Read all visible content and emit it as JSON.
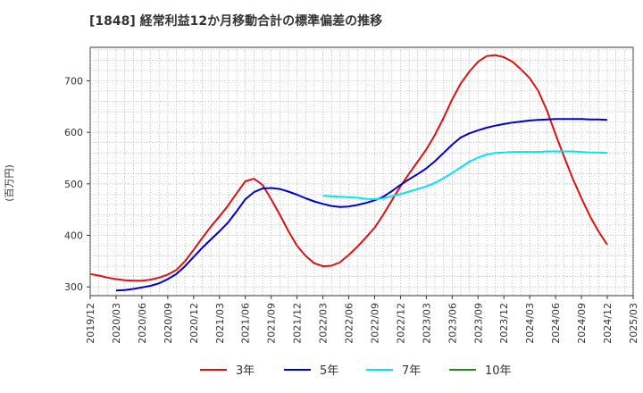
{
  "chart_data": {
    "type": "line",
    "title": "[1848]  経常利益12か月移動合計の標準偏差の推移",
    "xlabel": "",
    "ylabel": "(百万円)",
    "ylim": [
      283,
      765
    ],
    "yticks": [
      300,
      400,
      500,
      600,
      700
    ],
    "x_start": "2019-12",
    "x_end": "2025-03",
    "xticks": [
      "2019/12",
      "2020/03",
      "2020/06",
      "2020/09",
      "2020/12",
      "2021/03",
      "2021/06",
      "2021/09",
      "2021/12",
      "2022/03",
      "2022/06",
      "2022/09",
      "2022/12",
      "2023/03",
      "2023/06",
      "2023/09",
      "2023/12",
      "2024/03",
      "2024/06",
      "2024/09",
      "2024/12",
      "2025/03"
    ],
    "grid": true,
    "legend_position": "bottom",
    "series": [
      {
        "name": "3年",
        "color": "#dd1111",
        "points": [
          [
            "2019-12",
            325
          ],
          [
            "2020-01",
            322
          ],
          [
            "2020-02",
            318
          ],
          [
            "2020-03",
            315
          ],
          [
            "2020-04",
            313
          ],
          [
            "2020-05",
            312
          ],
          [
            "2020-06",
            312
          ],
          [
            "2020-07",
            314
          ],
          [
            "2020-08",
            318
          ],
          [
            "2020-09",
            324
          ],
          [
            "2020-10",
            333
          ],
          [
            "2020-11",
            350
          ],
          [
            "2020-12",
            372
          ],
          [
            "2021-01",
            395
          ],
          [
            "2021-02",
            417
          ],
          [
            "2021-03",
            437
          ],
          [
            "2021-04",
            458
          ],
          [
            "2021-05",
            482
          ],
          [
            "2021-06",
            505
          ],
          [
            "2021-07",
            510
          ],
          [
            "2021-08",
            498
          ],
          [
            "2021-09",
            470
          ],
          [
            "2021-10",
            440
          ],
          [
            "2021-11",
            408
          ],
          [
            "2021-12",
            380
          ],
          [
            "2022-01",
            360
          ],
          [
            "2022-02",
            346
          ],
          [
            "2022-03",
            340
          ],
          [
            "2022-04",
            341
          ],
          [
            "2022-05",
            348
          ],
          [
            "2022-06",
            362
          ],
          [
            "2022-07",
            378
          ],
          [
            "2022-08",
            396
          ],
          [
            "2022-09",
            415
          ],
          [
            "2022-10",
            440
          ],
          [
            "2022-11",
            468
          ],
          [
            "2022-12",
            495
          ],
          [
            "2023-01",
            520
          ],
          [
            "2023-02",
            543
          ],
          [
            "2023-03",
            567
          ],
          [
            "2023-04",
            595
          ],
          [
            "2023-05",
            628
          ],
          [
            "2023-06",
            664
          ],
          [
            "2023-07",
            695
          ],
          [
            "2023-08",
            718
          ],
          [
            "2023-09",
            737
          ],
          [
            "2023-10",
            748
          ],
          [
            "2023-11",
            750
          ],
          [
            "2023-12",
            746
          ],
          [
            "2024-01",
            737
          ],
          [
            "2024-02",
            722
          ],
          [
            "2024-03",
            705
          ],
          [
            "2024-04",
            680
          ],
          [
            "2024-05",
            642
          ],
          [
            "2024-06",
            596
          ],
          [
            "2024-07",
            552
          ],
          [
            "2024-08",
            510
          ],
          [
            "2024-09",
            472
          ],
          [
            "2024-10",
            437
          ],
          [
            "2024-11",
            407
          ],
          [
            "2024-12",
            382
          ]
        ]
      },
      {
        "name": "5年",
        "color": "#0000cc",
        "points": [
          [
            "2020-03",
            293
          ],
          [
            "2020-04",
            294
          ],
          [
            "2020-05",
            296
          ],
          [
            "2020-06",
            299
          ],
          [
            "2020-07",
            302
          ],
          [
            "2020-08",
            307
          ],
          [
            "2020-09",
            315
          ],
          [
            "2020-10",
            325
          ],
          [
            "2020-11",
            340
          ],
          [
            "2020-12",
            358
          ],
          [
            "2021-01",
            376
          ],
          [
            "2021-02",
            392
          ],
          [
            "2021-03",
            408
          ],
          [
            "2021-04",
            425
          ],
          [
            "2021-05",
            447
          ],
          [
            "2021-06",
            470
          ],
          [
            "2021-07",
            484
          ],
          [
            "2021-08",
            491
          ],
          [
            "2021-09",
            492
          ],
          [
            "2021-10",
            490
          ],
          [
            "2021-11",
            485
          ],
          [
            "2021-12",
            479
          ],
          [
            "2022-01",
            472
          ],
          [
            "2022-02",
            466
          ],
          [
            "2022-03",
            461
          ],
          [
            "2022-04",
            457
          ],
          [
            "2022-05",
            455
          ],
          [
            "2022-06",
            456
          ],
          [
            "2022-07",
            459
          ],
          [
            "2022-08",
            463
          ],
          [
            "2022-09",
            468
          ],
          [
            "2022-10",
            475
          ],
          [
            "2022-11",
            486
          ],
          [
            "2022-12",
            498
          ],
          [
            "2023-01",
            509
          ],
          [
            "2023-02",
            519
          ],
          [
            "2023-03",
            530
          ],
          [
            "2023-04",
            544
          ],
          [
            "2023-05",
            560
          ],
          [
            "2023-06",
            576
          ],
          [
            "2023-07",
            590
          ],
          [
            "2023-08",
            598
          ],
          [
            "2023-09",
            604
          ],
          [
            "2023-10",
            609
          ],
          [
            "2023-11",
            613
          ],
          [
            "2023-12",
            616
          ],
          [
            "2024-01",
            619
          ],
          [
            "2024-02",
            621
          ],
          [
            "2024-03",
            623
          ],
          [
            "2024-04",
            624
          ],
          [
            "2024-05",
            625
          ],
          [
            "2024-06",
            626
          ],
          [
            "2024-07",
            626
          ],
          [
            "2024-08",
            626
          ],
          [
            "2024-09",
            626
          ],
          [
            "2024-10",
            625
          ],
          [
            "2024-11",
            625
          ],
          [
            "2024-12",
            624
          ]
        ]
      },
      {
        "name": "7年",
        "color": "#00e5ee",
        "points": [
          [
            "2022-03",
            477
          ],
          [
            "2022-04",
            476
          ],
          [
            "2022-05",
            475
          ],
          [
            "2022-06",
            474
          ],
          [
            "2022-07",
            473
          ],
          [
            "2022-08",
            471
          ],
          [
            "2022-09",
            470
          ],
          [
            "2022-10",
            472
          ],
          [
            "2022-11",
            476
          ],
          [
            "2022-12",
            480
          ],
          [
            "2023-01",
            485
          ],
          [
            "2023-02",
            490
          ],
          [
            "2023-03",
            495
          ],
          [
            "2023-04",
            502
          ],
          [
            "2023-05",
            511
          ],
          [
            "2023-06",
            521
          ],
          [
            "2023-07",
            532
          ],
          [
            "2023-08",
            543
          ],
          [
            "2023-09",
            551
          ],
          [
            "2023-10",
            557
          ],
          [
            "2023-11",
            560
          ],
          [
            "2023-12",
            561
          ],
          [
            "2024-01",
            562
          ],
          [
            "2024-02",
            562
          ],
          [
            "2024-03",
            562
          ],
          [
            "2024-04",
            562
          ],
          [
            "2024-05",
            563
          ],
          [
            "2024-06",
            563
          ],
          [
            "2024-07",
            563
          ],
          [
            "2024-08",
            563
          ],
          [
            "2024-09",
            562
          ],
          [
            "2024-10",
            561
          ],
          [
            "2024-11",
            561
          ],
          [
            "2024-12",
            560
          ]
        ]
      },
      {
        "name": "10年",
        "color": "#228822",
        "points": []
      }
    ]
  }
}
